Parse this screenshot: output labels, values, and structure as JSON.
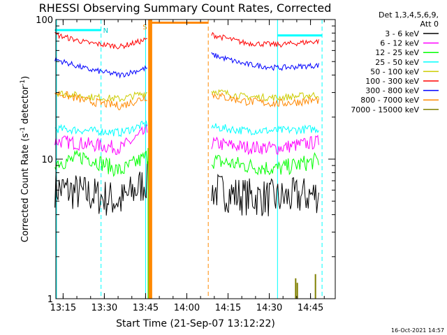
{
  "chart_data": {
    "type": "line",
    "title": "RHESSI Observing Summary Count Rates, Corrected",
    "xlabel": "Start Time (21-Sep-07 13:12:22)",
    "ylabel_main": "Corrected Count Rate (s",
    "ylabel_sup": "-1",
    "ylabel_mid": " detector",
    "ylabel_end": ")",
    "yscale": "log",
    "ylim": [
      1,
      100
    ],
    "xlim_min": [
      13.2061,
      14.9
    ],
    "x_unit": "hours",
    "x_ticks": [
      {
        "v": 13.25,
        "label": "13:15"
      },
      {
        "v": 13.5,
        "label": "13:30"
      },
      {
        "v": 13.75,
        "label": "13:45"
      },
      {
        "v": 14.0,
        "label": "14:00"
      },
      {
        "v": 14.25,
        "label": "14:15"
      },
      {
        "v": 14.5,
        "label": "14:30"
      },
      {
        "v": 14.75,
        "label": "14:45"
      }
    ],
    "y_ticks": [
      {
        "v": 1,
        "label": "1"
      },
      {
        "v": 10,
        "label": "10"
      },
      {
        "v": 100,
        "label": "100"
      }
    ],
    "legend_header": [
      "Det 1,3,4,5,6,9,",
      "Att 0"
    ],
    "legend_position": "right",
    "series": [
      {
        "name": "3 - 6 keV",
        "color": "#000000",
        "segments": [
          {
            "x": [
              13.2,
              13.4,
              13.6,
              13.76
            ],
            "y": [
              6.2,
              5.6,
              5.0,
              7.0
            ],
            "noise": 0.14
          },
          {
            "x": [
              14.15,
              14.35,
              14.55,
              14.8
            ],
            "y": [
              6.0,
              5.4,
              5.2,
              5.6
            ],
            "noise": 0.14
          }
        ]
      },
      {
        "name": "6 - 12 keV",
        "color": "#ff00ff",
        "segments": [
          {
            "x": [
              13.2,
              13.4,
              13.6,
              13.76
            ],
            "y": [
              13.5,
              12.8,
              12.0,
              16.0
            ],
            "noise": 0.05
          },
          {
            "x": [
              14.15,
              14.35,
              14.55,
              14.8
            ],
            "y": [
              13.0,
              12.2,
              12.0,
              13.3
            ],
            "noise": 0.05
          }
        ]
      },
      {
        "name": "12 - 25 keV",
        "color": "#00ff00",
        "segments": [
          {
            "x": [
              13.2,
              13.3,
              13.38,
              13.6,
              13.76
            ],
            "y": [
              9.5,
              9.8,
              10.5,
              8.2,
              10.5
            ],
            "noise": 0.06
          },
          {
            "x": [
              14.15,
              14.35,
              14.55,
              14.8
            ],
            "y": [
              9.8,
              9.0,
              8.5,
              9.8
            ],
            "noise": 0.06
          }
        ]
      },
      {
        "name": "25 - 50 keV",
        "color": "#00ffff",
        "segments": [
          {
            "x": [
              13.2,
              13.4,
              13.6,
              13.76
            ],
            "y": [
              16.5,
              16.0,
              15.5,
              18.0
            ],
            "noise": 0.03
          },
          {
            "x": [
              14.15,
              14.35,
              14.55,
              14.8
            ],
            "y": [
              17.0,
              16.0,
              16.0,
              16.5
            ],
            "noise": 0.03
          }
        ]
      },
      {
        "name": "50 - 100 keV",
        "color": "#cccc00",
        "segments": [
          {
            "x": [
              13.2,
              13.4,
              13.6,
              13.76
            ],
            "y": [
              30.0,
              28.0,
              27.0,
              30.0
            ],
            "noise": 0.025
          },
          {
            "x": [
              14.15,
              14.35,
              14.55,
              14.8
            ],
            "y": [
              31.0,
              28.0,
              27.5,
              29.0
            ],
            "noise": 0.025
          }
        ]
      },
      {
        "name": "100 - 300 keV",
        "color": "#ff0000",
        "segments": [
          {
            "x": [
              13.2,
              13.4,
              13.6,
              13.76
            ],
            "y": [
              78.0,
              68.0,
              64.0,
              72.0
            ],
            "noise": 0.02
          },
          {
            "x": [
              14.15,
              14.35,
              14.55,
              14.8
            ],
            "y": [
              78.0,
              68.0,
              66.0,
              70.0
            ],
            "noise": 0.02
          }
        ]
      },
      {
        "name": "300 - 800 keV",
        "color": "#0000ff",
        "segments": [
          {
            "x": [
              13.2,
              13.4,
              13.6,
              13.76
            ],
            "y": [
              52.0,
              44.0,
              40.0,
              45.0
            ],
            "noise": 0.02
          },
          {
            "x": [
              14.15,
              14.35,
              14.55,
              14.8
            ],
            "y": [
              56.0,
              48.0,
              45.0,
              47.0
            ],
            "noise": 0.02
          }
        ]
      },
      {
        "name": "800 - 7000 keV",
        "color": "#ff8800",
        "segments": [
          {
            "x": [
              13.2,
              13.4,
              13.6,
              13.76
            ],
            "y": [
              30.0,
              26.0,
              24.0,
              28.0
            ],
            "noise": 0.03
          },
          {
            "x": [
              13.77,
              14.13
            ],
            "y": [
              95.0,
              95.0
            ],
            "noise": 0
          },
          {
            "x": [
              14.15,
              14.35,
              14.55,
              14.8
            ],
            "y": [
              29.0,
              26.0,
              25.0,
              26.5
            ],
            "noise": 0.03
          }
        ]
      },
      {
        "name": "7000 - 15000 keV",
        "color": "#808000",
        "spikes": [
          {
            "x": 14.66,
            "y": 1.4
          },
          {
            "x": 14.67,
            "y": 1.3
          },
          {
            "x": 14.78,
            "y": 1.5
          }
        ]
      }
    ],
    "cyan_bar_left": {
      "x": [
        13.2,
        13.48
      ],
      "y": 84
    },
    "cyan_bar_right": {
      "x": [
        14.55,
        14.82
      ],
      "y": 77
    },
    "cyan_bar_label": "N",
    "orange_band": {
      "x": [
        13.77,
        13.79
      ]
    },
    "orange_markers": [
      {
        "x": 13.75,
        "label": "S"
      }
    ],
    "vlines_solid_cyan": [
      13.21,
      13.75,
      14.55
    ],
    "vlines_dashed_cyan": [
      13.48,
      14.82
    ],
    "vlines_dashed_orange": [
      14.13
    ],
    "vlines_solid_orange": [
      13.77
    ]
  },
  "timestamp": "16-Oct-2021 14:57"
}
